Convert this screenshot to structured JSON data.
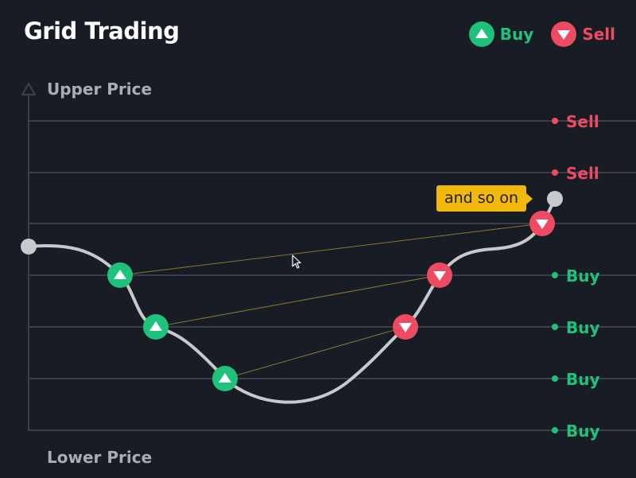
{
  "header": {
    "title": "Grid Trading",
    "legend": [
      {
        "key": "buy",
        "label": "Buy",
        "color": "#1ec27b",
        "icon": "up-triangle-icon"
      },
      {
        "key": "sell",
        "label": "Sell",
        "color": "#ee4a62",
        "icon": "down-triangle-icon"
      }
    ]
  },
  "axis": {
    "upper_label": "Upper Price",
    "lower_label": "Lower Price",
    "arrow_icon": "axis-up-arrow-icon"
  },
  "grid_levels": [
    {
      "label": "Sell",
      "type": "sell"
    },
    {
      "label": "Sell",
      "type": "sell"
    },
    {
      "label": "",
      "type": "none"
    },
    {
      "label": "Buy",
      "type": "buy"
    },
    {
      "label": "Buy",
      "type": "buy"
    },
    {
      "label": "Buy",
      "type": "buy"
    },
    {
      "label": "Buy",
      "type": "buy"
    }
  ],
  "tooltip": {
    "text": "and so on"
  },
  "colors": {
    "background": "#181c24",
    "buy": "#1ec27b",
    "sell": "#ee4a62",
    "price_line": "#c7c9ce",
    "grid_line": "#3a3f49",
    "connector": "#8a7a2e",
    "tooltip": "#f0b90b"
  }
}
